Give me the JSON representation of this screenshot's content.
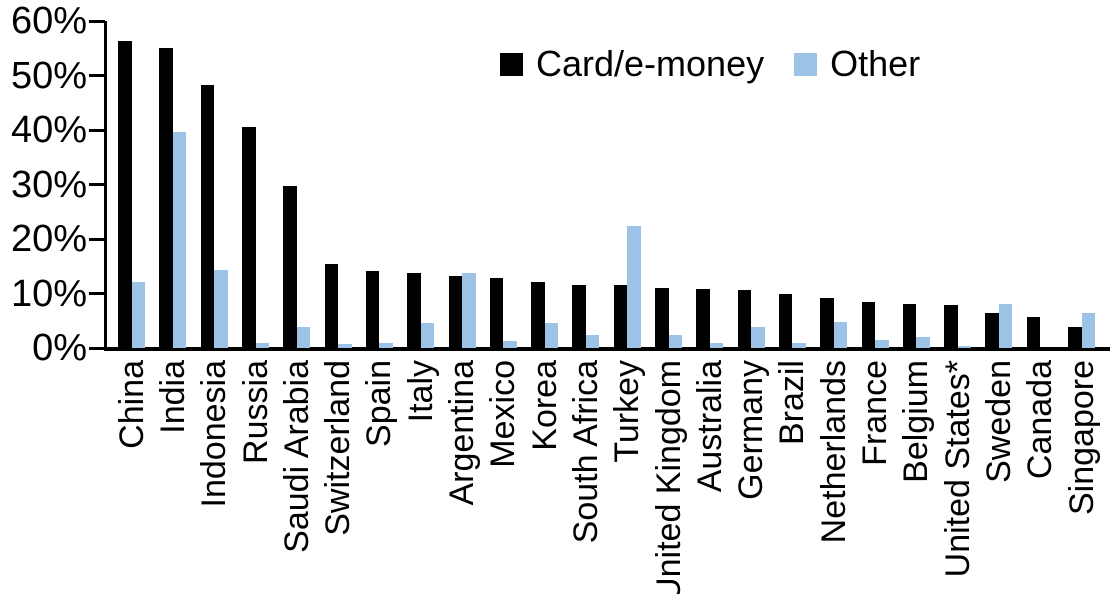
{
  "chart_data": {
    "type": "bar",
    "title": "",
    "xlabel": "",
    "ylabel": "",
    "ylim": [
      0,
      60
    ],
    "ytick_step": 10,
    "yticks": [
      "0%",
      "10%",
      "20%",
      "30%",
      "40%",
      "50%",
      "60%"
    ],
    "grid": false,
    "legend_position": "top-center",
    "categories": [
      "China",
      "India",
      "Indonesia",
      "Russia",
      "Saudi Arabia",
      "Switzerland",
      "Spain",
      "Italy",
      "Argentina",
      "Mexico",
      "Korea",
      "South Africa",
      "Turkey",
      "United Kingdom",
      "Australia",
      "Germany",
      "Brazil",
      "Netherlands",
      "France",
      "Belgium",
      "United States*",
      "Sweden",
      "Canada",
      "Singapore"
    ],
    "series": [
      {
        "name": "Card/e-money",
        "color": "#000000",
        "values": [
          56.3,
          55.0,
          48.3,
          40.5,
          29.8,
          15.5,
          14.1,
          13.8,
          13.2,
          12.9,
          12.2,
          11.6,
          11.5,
          11.0,
          10.8,
          10.6,
          10.0,
          9.1,
          8.5,
          8.1,
          7.8,
          6.4,
          5.7,
          3.8
        ]
      },
      {
        "name": "Other",
        "color": "#9CC2E5",
        "values": [
          12.2,
          39.7,
          14.4,
          1.0,
          3.8,
          0.8,
          0.9,
          4.5,
          13.7,
          1.2,
          4.5,
          2.3,
          22.4,
          2.3,
          0.9,
          3.8,
          1.0,
          4.7,
          1.5,
          2.0,
          0.3,
          8.0,
          0.0,
          6.5
        ]
      }
    ]
  },
  "layout_colors": {
    "axis": "#000000",
    "background": "#ffffff"
  }
}
